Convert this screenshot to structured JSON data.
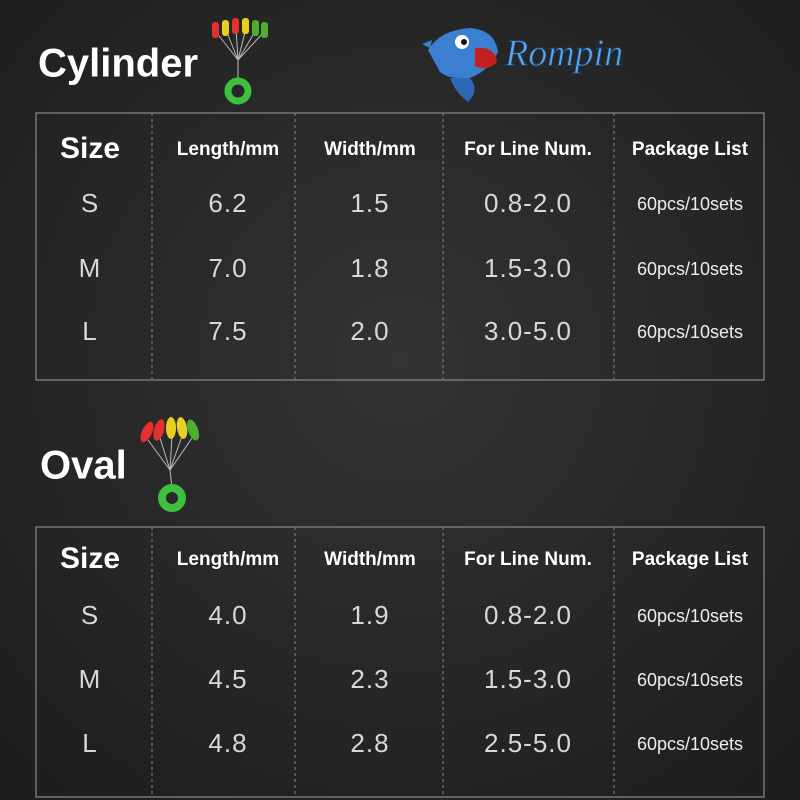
{
  "brand": "Rompin",
  "sections": [
    {
      "title": "Cylinder",
      "table": {
        "header": [
          "Size",
          "Length/mm",
          "Width/mm",
          "For Line Num.",
          "Package List"
        ],
        "rows": [
          [
            "S",
            "6.2",
            "1.5",
            "0.8-2.0",
            "60pcs/10sets"
          ],
          [
            "M",
            "7.0",
            "1.8",
            "1.5-3.0",
            "60pcs/10sets"
          ],
          [
            "L",
            "7.5",
            "2.0",
            "3.0-5.0",
            "60pcs/10sets"
          ]
        ]
      }
    },
    {
      "title": "Oval",
      "table": {
        "header": [
          "Size",
          "Length/mm",
          "Width/mm",
          "For Line Num.",
          "Package List"
        ],
        "rows": [
          [
            "S",
            "4.0",
            "1.9",
            "0.8-2.0",
            "60pcs/10sets"
          ],
          [
            "M",
            "4.5",
            "2.3",
            "1.5-3.0",
            "60pcs/10sets"
          ],
          [
            "L",
            "4.8",
            "2.8",
            "2.5-5.0",
            "60pcs/10sets"
          ]
        ]
      }
    }
  ]
}
